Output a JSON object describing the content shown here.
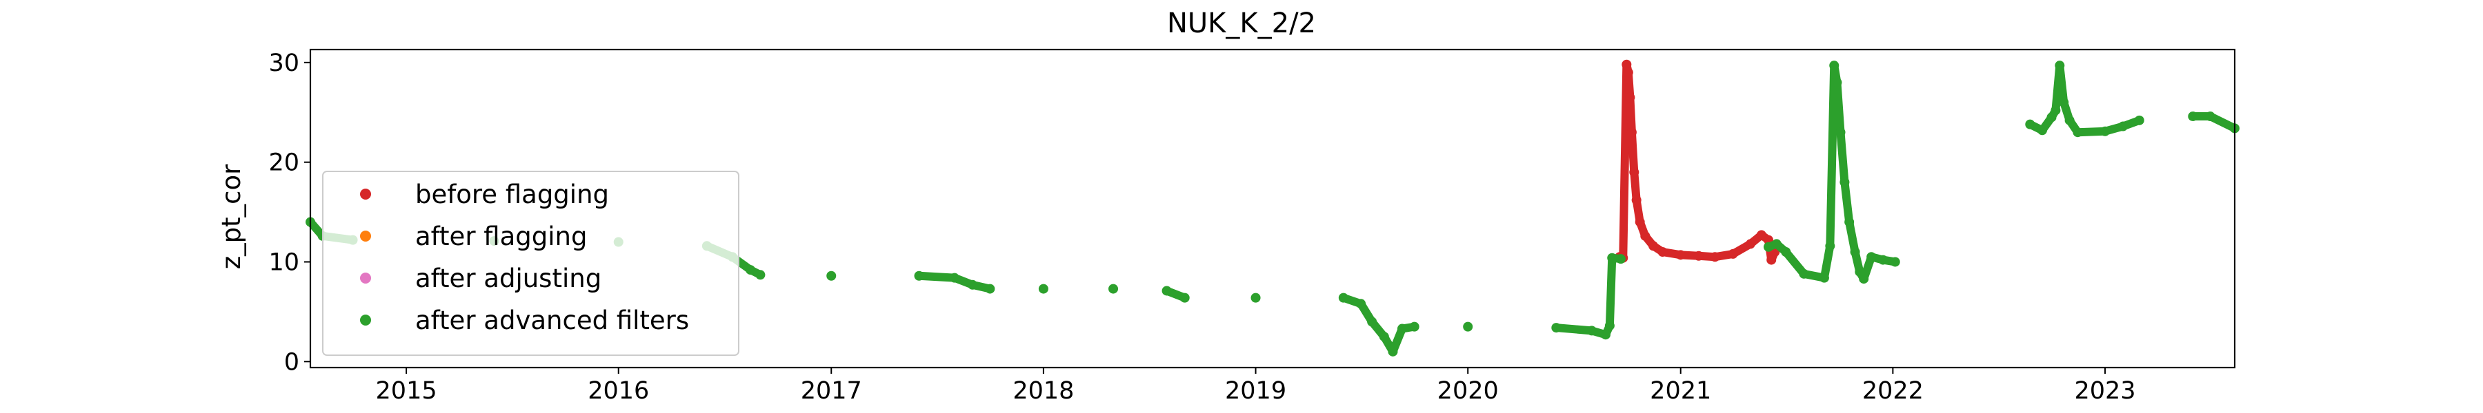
{
  "chart_data": {
    "type": "scatter",
    "title": "NUK_K_2/2",
    "xlabel": "",
    "ylabel": "z_pt_cor",
    "xlim": [
      "2014-07-20",
      "2023-08-12"
    ],
    "ylim": [
      -0.6,
      31.3
    ],
    "xticks": [
      "2015",
      "2016",
      "2017",
      "2018",
      "2019",
      "2020",
      "2021",
      "2022",
      "2023"
    ],
    "yticks": [
      0,
      10,
      20,
      30
    ],
    "ytick_labels": [
      "0",
      "10",
      "20",
      "30"
    ],
    "grid": false,
    "legend": {
      "placement": "lower-left",
      "entries": [
        "before flagging",
        "after flagging",
        "after adjusting",
        "after advanced filters"
      ]
    },
    "colors": {
      "before flagging": "#d62728",
      "after flagging": "#ff7f0e",
      "after adjusting": "#e377c2",
      "after advanced filters": "#2ca02c"
    },
    "series": [
      {
        "name": "before flagging",
        "points": [
          [
            "2020-09-18",
            10.5
          ],
          [
            "2020-09-24",
            10.4
          ],
          [
            "2020-09-30",
            29.8
          ],
          [
            "2020-10-03",
            29.0
          ],
          [
            "2020-10-06",
            26.5
          ],
          [
            "2020-10-09",
            23.0
          ],
          [
            "2020-10-13",
            19.0
          ],
          [
            "2020-10-17",
            16.2
          ],
          [
            "2020-10-23",
            14.0
          ],
          [
            "2020-11-01",
            12.6
          ],
          [
            "2020-11-15",
            11.6
          ],
          [
            "2020-12-01",
            11.0
          ],
          [
            "2021-01-01",
            10.7
          ],
          [
            "2021-02-01",
            10.6
          ],
          [
            "2021-03-01",
            10.5
          ],
          [
            "2021-04-01",
            10.8
          ],
          [
            "2021-05-01",
            11.8
          ],
          [
            "2021-05-20",
            12.7
          ],
          [
            "2021-06-01",
            12.2
          ],
          [
            "2021-06-06",
            10.2
          ],
          [
            "2021-06-12",
            11.0
          ]
        ]
      },
      {
        "name": "after advanced filters",
        "points": [
          [
            "2014-07-20",
            14.0
          ],
          [
            "2014-08-10",
            12.6
          ],
          [
            "2014-10-01",
            12.2
          ],
          [
            "2015-06-01",
            12.1
          ],
          [
            "2016-01-01",
            12.0
          ],
          [
            "2016-06-01",
            11.6
          ],
          [
            "2016-07-15",
            10.5
          ],
          [
            "2016-08-15",
            9.2
          ],
          [
            "2016-09-01",
            8.7
          ],
          [
            "2017-01-01",
            8.6
          ],
          [
            "2017-06-01",
            8.6
          ],
          [
            "2017-08-01",
            8.4
          ],
          [
            "2017-09-01",
            7.7
          ],
          [
            "2017-10-01",
            7.3
          ],
          [
            "2018-01-01",
            7.3
          ],
          [
            "2018-05-01",
            7.3
          ],
          [
            "2018-08-01",
            7.1
          ],
          [
            "2018-09-01",
            6.4
          ],
          [
            "2019-01-01",
            6.4
          ],
          [
            "2019-06-01",
            6.4
          ],
          [
            "2019-07-01",
            5.8
          ],
          [
            "2019-07-20",
            4.0
          ],
          [
            "2019-08-10",
            2.5
          ],
          [
            "2019-08-25",
            1.0
          ],
          [
            "2019-09-10",
            3.3
          ],
          [
            "2019-10-01",
            3.5
          ],
          [
            "2020-01-01",
            3.5
          ],
          [
            "2020-06-01",
            3.4
          ],
          [
            "2020-08-01",
            3.1
          ],
          [
            "2020-08-25",
            2.7
          ],
          [
            "2020-09-01",
            3.6
          ],
          [
            "2020-09-05",
            10.4
          ],
          [
            "2020-09-20",
            10.3
          ],
          [
            "2021-06-01",
            11.5
          ],
          [
            "2021-06-15",
            11.8
          ],
          [
            "2021-07-01",
            11.0
          ],
          [
            "2021-08-01",
            8.8
          ],
          [
            "2021-09-05",
            8.4
          ],
          [
            "2021-09-15",
            11.6
          ],
          [
            "2021-09-22",
            29.7
          ],
          [
            "2021-09-27",
            28.0
          ],
          [
            "2021-10-03",
            23.0
          ],
          [
            "2021-10-10",
            18.0
          ],
          [
            "2021-10-18",
            14.0
          ],
          [
            "2021-10-28",
            11.0
          ],
          [
            "2021-11-05",
            9.0
          ],
          [
            "2021-11-12",
            8.3
          ],
          [
            "2021-11-25",
            10.5
          ],
          [
            "2021-12-15",
            10.2
          ],
          [
            "2022-01-05",
            10.0
          ],
          [
            "2022-08-25",
            23.8
          ],
          [
            "2022-09-15",
            23.2
          ],
          [
            "2022-10-01",
            24.5
          ],
          [
            "2022-10-08",
            25.2
          ],
          [
            "2022-10-15",
            29.7
          ],
          [
            "2022-10-22",
            26.0
          ],
          [
            "2022-11-01",
            24.2
          ],
          [
            "2022-11-15",
            23.0
          ],
          [
            "2023-01-01",
            23.1
          ],
          [
            "2023-02-01",
            23.6
          ],
          [
            "2023-03-01",
            24.2
          ],
          [
            "2023-06-01",
            24.6
          ],
          [
            "2023-07-01",
            24.6
          ],
          [
            "2023-08-12",
            23.4
          ]
        ]
      }
    ]
  }
}
